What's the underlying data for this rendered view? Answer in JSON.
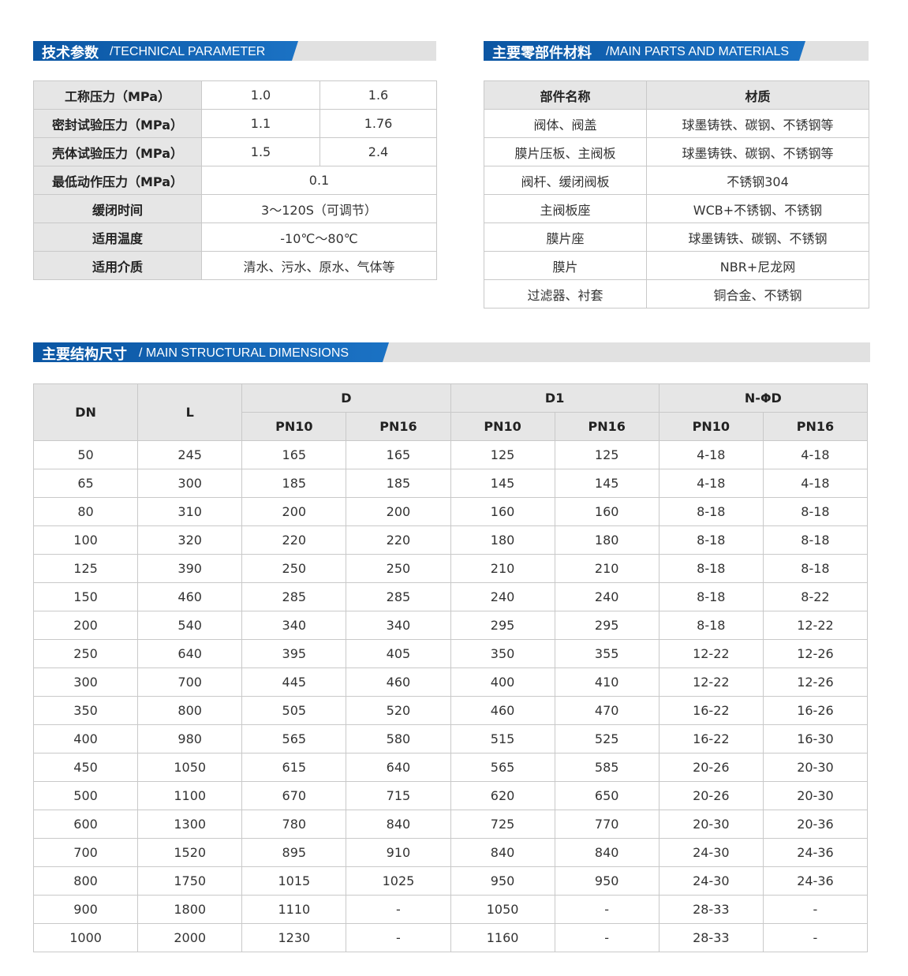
{
  "colors": {
    "banner_blue": "#0b56a3",
    "banner_grey": "#e1e1e1",
    "header_cell": "#e6e6e6",
    "border": "#c9c9c9"
  },
  "tech": {
    "title_cn": "技术参数",
    "title_en": "/TECHNICAL PARAMETER",
    "rows": [
      {
        "label": "工称压力（MPa）",
        "values": [
          "1.0",
          "1.6"
        ]
      },
      {
        "label": "密封试验压力（MPa）",
        "values": [
          "1.1",
          "1.76"
        ]
      },
      {
        "label": "壳体试验压力（MPa）",
        "values": [
          "1.5",
          "2.4"
        ]
      },
      {
        "label": "最低动作压力（MPa）",
        "values": [
          "0.1"
        ]
      },
      {
        "label": "缓闭时间",
        "values": [
          "3～120S（可调节）"
        ]
      },
      {
        "label": "适用温度",
        "values": [
          "-10℃～80℃"
        ]
      },
      {
        "label": "适用介质",
        "values": [
          "清水、污水、原水、气体等"
        ]
      }
    ]
  },
  "materials": {
    "title_cn": "主要零部件材料",
    "title_en": "/MAIN PARTS AND MATERIALS",
    "headers": [
      "部件名称",
      "材质"
    ],
    "rows": [
      [
        "阀体、阀盖",
        "球墨铸铁、碳钢、不锈钢等"
      ],
      [
        "膜片压板、主阀板",
        "球墨铸铁、碳钢、不锈钢等"
      ],
      [
        "阀杆、缓闭阀板",
        "不锈钢304"
      ],
      [
        "主阀板座",
        "WCB+不锈钢、不锈钢"
      ],
      [
        "膜片座",
        "球墨铸铁、碳钢、不锈钢"
      ],
      [
        "膜片",
        "NBR+尼龙网"
      ],
      [
        "过滤器、衬套",
        "铜合金、不锈钢"
      ]
    ]
  },
  "dimensions": {
    "title_cn": "主要结构尺寸",
    "title_en": "/ MAIN STRUCTURAL DIMENSIONS",
    "headers": {
      "dn": "DN",
      "l": "L",
      "groups": [
        "D",
        "D1",
        "N-ΦD"
      ],
      "sub": [
        "PN10",
        "PN16",
        "PN10",
        "PN16",
        "PN10",
        "PN16"
      ]
    },
    "rows": [
      [
        "50",
        "245",
        "165",
        "165",
        "125",
        "125",
        "4-18",
        "4-18"
      ],
      [
        "65",
        "300",
        "185",
        "185",
        "145",
        "145",
        "4-18",
        "4-18"
      ],
      [
        "80",
        "310",
        "200",
        "200",
        "160",
        "160",
        "8-18",
        "8-18"
      ],
      [
        "100",
        "320",
        "220",
        "220",
        "180",
        "180",
        "8-18",
        "8-18"
      ],
      [
        "125",
        "390",
        "250",
        "250",
        "210",
        "210",
        "8-18",
        "8-18"
      ],
      [
        "150",
        "460",
        "285",
        "285",
        "240",
        "240",
        "8-18",
        "8-22"
      ],
      [
        "200",
        "540",
        "340",
        "340",
        "295",
        "295",
        "8-18",
        "12-22"
      ],
      [
        "250",
        "640",
        "395",
        "405",
        "350",
        "355",
        "12-22",
        "12-26"
      ],
      [
        "300",
        "700",
        "445",
        "460",
        "400",
        "410",
        "12-22",
        "12-26"
      ],
      [
        "350",
        "800",
        "505",
        "520",
        "460",
        "470",
        "16-22",
        "16-26"
      ],
      [
        "400",
        "980",
        "565",
        "580",
        "515",
        "525",
        "16-22",
        "16-30"
      ],
      [
        "450",
        "1050",
        "615",
        "640",
        "565",
        "585",
        "20-26",
        "20-30"
      ],
      [
        "500",
        "1100",
        "670",
        "715",
        "620",
        "650",
        "20-26",
        "20-30"
      ],
      [
        "600",
        "1300",
        "780",
        "840",
        "725",
        "770",
        "20-30",
        "20-36"
      ],
      [
        "700",
        "1520",
        "895",
        "910",
        "840",
        "840",
        "24-30",
        "24-36"
      ],
      [
        "800",
        "1750",
        "1015",
        "1025",
        "950",
        "950",
        "24-30",
        "24-36"
      ],
      [
        "900",
        "1800",
        "1110",
        "-",
        "1050",
        "-",
        "28-33",
        "-"
      ],
      [
        "1000",
        "2000",
        "1230",
        "-",
        "1160",
        "-",
        "28-33",
        "-"
      ]
    ]
  }
}
